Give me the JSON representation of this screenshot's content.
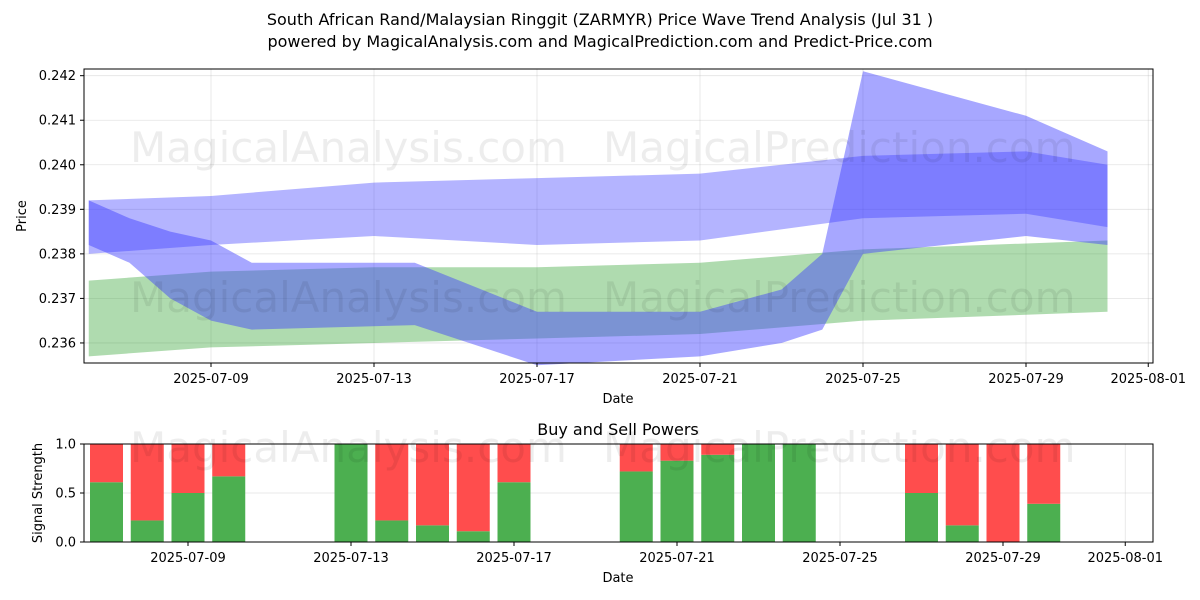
{
  "title_line1": "South African Rand/Malaysian Ringgit (ZARMYR) Price Wave Trend Analysis (Jul 31 )",
  "title_line2": "powered by MagicalAnalysis.com and MagicalPrediction.com and Predict-Price.com",
  "watermarks": [
    "MagicalAnalysis.com",
    "MagicalPrediction.com"
  ],
  "colors": {
    "blue": "#3b3bff",
    "green": "#2ca02c",
    "red": "#ff3b3b",
    "bar_green": "#4caf50",
    "bar_red": "#ff4d4d"
  },
  "chart_data": [
    {
      "type": "area",
      "title": "",
      "xlabel": "Date",
      "ylabel": "Price",
      "x_ticks": [
        "2025-07-09",
        "2025-07-13",
        "2025-07-17",
        "2025-07-21",
        "2025-07-25",
        "2025-07-29",
        "2025-08-01"
      ],
      "y_ticks": [
        "0.236",
        "0.237",
        "0.238",
        "0.239",
        "0.240",
        "0.241",
        "0.242"
      ],
      "xlim": [
        "2025-07-06",
        "2025-08-01"
      ],
      "ylim": [
        0.23555,
        0.24215
      ],
      "grid": true,
      "series": [
        {
          "name": "green band upper",
          "color": "green",
          "x": [
            "2025-07-06",
            "2025-07-09",
            "2025-07-13",
            "2025-07-17",
            "2025-07-21",
            "2025-07-25",
            "2025-07-31"
          ],
          "values": [
            0.2374,
            0.2376,
            0.2377,
            0.2377,
            0.2378,
            0.2381,
            0.2383
          ]
        },
        {
          "name": "green band lower",
          "color": "green",
          "x": [
            "2025-07-06",
            "2025-07-09",
            "2025-07-13",
            "2025-07-17",
            "2025-07-21",
            "2025-07-25",
            "2025-07-31"
          ],
          "values": [
            0.2357,
            0.2359,
            0.236,
            0.2361,
            0.2362,
            0.2365,
            0.2367
          ]
        },
        {
          "name": "blue band upper",
          "color": "blue",
          "x": [
            "2025-07-06",
            "2025-07-09",
            "2025-07-13",
            "2025-07-17",
            "2025-07-21",
            "2025-07-25",
            "2025-07-29",
            "2025-07-31"
          ],
          "values": [
            0.2392,
            0.2393,
            0.2396,
            0.2397,
            0.2398,
            0.2402,
            0.2403,
            0.24
          ]
        },
        {
          "name": "blue band lower",
          "color": "blue",
          "x": [
            "2025-07-06",
            "2025-07-09",
            "2025-07-13",
            "2025-07-17",
            "2025-07-21",
            "2025-07-25",
            "2025-07-29",
            "2025-07-31"
          ],
          "values": [
            0.238,
            0.2382,
            0.2384,
            0.2382,
            0.2383,
            0.2388,
            0.2389,
            0.2386
          ]
        },
        {
          "name": "blue wave upper",
          "color": "blue",
          "x": [
            "2025-07-06",
            "2025-07-07",
            "2025-07-08",
            "2025-07-09",
            "2025-07-10",
            "2025-07-14",
            "2025-07-17",
            "2025-07-21",
            "2025-07-23",
            "2025-07-24",
            "2025-07-25",
            "2025-07-29",
            "2025-07-31"
          ],
          "values": [
            0.2392,
            0.2388,
            0.2385,
            0.2383,
            0.2378,
            0.2378,
            0.2367,
            0.2367,
            0.2372,
            0.238,
            0.2421,
            0.2411,
            0.2403
          ]
        },
        {
          "name": "blue wave lower",
          "color": "blue",
          "x": [
            "2025-07-06",
            "2025-07-07",
            "2025-07-08",
            "2025-07-09",
            "2025-07-10",
            "2025-07-14",
            "2025-07-17",
            "2025-07-21",
            "2025-07-23",
            "2025-07-24",
            "2025-07-25",
            "2025-07-29",
            "2025-07-31"
          ],
          "values": [
            0.2382,
            0.2378,
            0.237,
            0.2365,
            0.2363,
            0.2364,
            0.2355,
            0.2357,
            0.236,
            0.2363,
            0.238,
            0.2384,
            0.2382
          ]
        }
      ]
    },
    {
      "type": "bar",
      "title": "Buy and Sell Powers",
      "xlabel": "Date",
      "ylabel": "Signal Strength",
      "x_ticks": [
        "2025-07-09",
        "2025-07-13",
        "2025-07-17",
        "2025-07-21",
        "2025-07-25",
        "2025-07-29",
        "2025-08-01"
      ],
      "y_ticks": [
        "0.0",
        "0.5",
        "1.0"
      ],
      "ylim": [
        0,
        1
      ],
      "grid": true,
      "categories": [
        "2025-07-07",
        "2025-07-08",
        "2025-07-09",
        "2025-07-10",
        "2025-07-13",
        "2025-07-14",
        "2025-07-15",
        "2025-07-16",
        "2025-07-17",
        "2025-07-20",
        "2025-07-21",
        "2025-07-22",
        "2025-07-23",
        "2025-07-24",
        "2025-07-27",
        "2025-07-28",
        "2025-07-29",
        "2025-07-30"
      ],
      "series": [
        {
          "name": "Buy",
          "color": "bar_green",
          "values": [
            0.61,
            0.22,
            0.5,
            0.67,
            1.0,
            0.22,
            0.17,
            0.11,
            0.61,
            0.72,
            0.83,
            0.89,
            1.0,
            1.0,
            0.5,
            0.17,
            0.0,
            0.39
          ]
        },
        {
          "name": "Sell",
          "color": "bar_red",
          "values": [
            0.39,
            0.78,
            0.5,
            0.33,
            0.0,
            0.78,
            0.83,
            0.89,
            0.39,
            0.28,
            0.17,
            0.11,
            0.0,
            0.0,
            0.5,
            0.83,
            1.0,
            0.61
          ]
        }
      ]
    }
  ]
}
